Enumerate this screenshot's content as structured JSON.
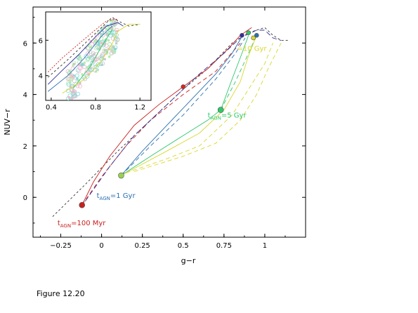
{
  "caption": "Figure 12.20",
  "chart_data": {
    "type": "line",
    "xlabel": "g−r",
    "ylabel": "NUV−r",
    "xlim": [
      -0.42,
      1.25
    ],
    "ylim": [
      -1.55,
      7.4
    ],
    "xticks": [
      -0.25,
      0,
      0.25,
      0.5,
      0.75,
      1
    ],
    "xtick_labels": [
      "−0.25",
      "0",
      "0.25",
      "0.5",
      "0.75",
      "1"
    ],
    "yticks": [
      0,
      2,
      4,
      6
    ],
    "ytick_labels": [
      "0",
      "2",
      "4",
      "6"
    ],
    "colors": {
      "red": "#c8201e",
      "blue": "#2a6fb0",
      "green": "#2ec86a",
      "yellow": "#d8d830",
      "black": "#333333",
      "navy": "#30309a"
    },
    "annotations": [
      {
        "main": "t",
        "sub": "AGN",
        "rest": "=100 Myr",
        "x": -0.27,
        "y": -1.08,
        "color": "#c8201e"
      },
      {
        "main": "t",
        "sub": "AGN",
        "rest": "=1 Gyr",
        "x": -0.03,
        "y": -0.02,
        "color": "#2a6fb0"
      },
      {
        "main": "t",
        "sub": "AGN",
        "rest": "=5 Gyr",
        "x": 0.65,
        "y": 3.1,
        "color": "#2ec86a"
      },
      {
        "main": "",
        "sub": "",
        "rest": "=10 Gyr",
        "x": 0.83,
        "y": 5.7,
        "color": "#d8d830"
      }
    ],
    "series": [
      {
        "color": "#333333",
        "dash": "3,3",
        "points": [
          [
            -0.3,
            -0.75
          ],
          [
            -0.1,
            0.5
          ],
          [
            0.1,
            1.8
          ],
          [
            0.3,
            3.0
          ],
          [
            0.5,
            4.2
          ],
          [
            0.65,
            5.0
          ],
          [
            0.8,
            6.0
          ],
          [
            0.9,
            6.4
          ],
          [
            1.0,
            6.6
          ],
          [
            1.05,
            6.3
          ],
          [
            1.1,
            6.1
          ],
          [
            1.15,
            6.1
          ]
        ]
      },
      {
        "color": "#c8201e",
        "dash": "",
        "points": [
          [
            -0.12,
            -0.3
          ],
          [
            -0.05,
            0.6
          ],
          [
            0.05,
            1.6
          ],
          [
            0.2,
            2.8
          ],
          [
            0.35,
            3.6
          ],
          [
            0.5,
            4.3
          ],
          [
            0.65,
            5.0
          ],
          [
            0.78,
            5.8
          ],
          [
            0.85,
            6.3
          ],
          [
            0.92,
            6.6
          ]
        ]
      },
      {
        "color": "#c8201e",
        "dash": "6,4",
        "points": [
          [
            -0.12,
            -0.3
          ],
          [
            0.0,
            0.8
          ],
          [
            0.15,
            2.0
          ],
          [
            0.3,
            3.0
          ],
          [
            0.5,
            4.0
          ],
          [
            0.7,
            4.9
          ],
          [
            0.85,
            6.0
          ]
        ]
      },
      {
        "color": "#30309a",
        "dash": "7,4",
        "points": [
          [
            -0.1,
            -0.15
          ],
          [
            0.05,
            1.2
          ],
          [
            0.2,
            2.4
          ],
          [
            0.4,
            3.6
          ],
          [
            0.6,
            4.8
          ],
          [
            0.75,
            5.6
          ],
          [
            0.85,
            6.2
          ],
          [
            0.95,
            6.5
          ],
          [
            1.0,
            6.5
          ],
          [
            1.05,
            6.2
          ],
          [
            1.1,
            6.1
          ]
        ]
      },
      {
        "color": "#2a6fb0",
        "dash": "",
        "points": [
          [
            0.12,
            0.85
          ],
          [
            0.25,
            1.8
          ],
          [
            0.4,
            2.8
          ],
          [
            0.55,
            3.8
          ],
          [
            0.7,
            4.8
          ],
          [
            0.8,
            5.6
          ],
          [
            0.86,
            6.25
          ]
        ]
      },
      {
        "color": "#2a6fb0",
        "dash": "6,4",
        "points": [
          [
            0.12,
            0.85
          ],
          [
            0.3,
            2.0
          ],
          [
            0.5,
            3.2
          ],
          [
            0.7,
            4.6
          ],
          [
            0.82,
            5.6
          ],
          [
            0.88,
            6.2
          ]
        ]
      },
      {
        "color": "#2ec86a",
        "dash": "",
        "points": [
          [
            0.12,
            0.85
          ],
          [
            0.3,
            1.6
          ],
          [
            0.5,
            2.4
          ],
          [
            0.65,
            3.0
          ],
          [
            0.73,
            3.4
          ],
          [
            0.8,
            4.6
          ],
          [
            0.86,
            5.6
          ],
          [
            0.9,
            6.3
          ]
        ]
      },
      {
        "color": "#2ec86a",
        "dash": "6,4",
        "points": [
          [
            0.73,
            3.4
          ],
          [
            0.82,
            4.5
          ],
          [
            0.9,
            5.6
          ],
          [
            0.95,
            6.3
          ]
        ]
      },
      {
        "color": "#d8d830",
        "dash": "",
        "points": [
          [
            0.12,
            0.85
          ],
          [
            0.4,
            1.8
          ],
          [
            0.6,
            2.5
          ],
          [
            0.75,
            3.4
          ],
          [
            0.85,
            4.5
          ],
          [
            0.9,
            5.5
          ],
          [
            0.95,
            6.3
          ]
        ]
      },
      {
        "color": "#d8d830",
        "dash": "6,4",
        "points": [
          [
            0.15,
            0.95
          ],
          [
            0.4,
            1.5
          ],
          [
            0.6,
            2.0
          ],
          [
            0.8,
            3.2
          ],
          [
            0.9,
            4.2
          ],
          [
            1.0,
            5.2
          ],
          [
            1.05,
            6.0
          ]
        ]
      },
      {
        "color": "#d8d830",
        "dash": "6,4",
        "points": [
          [
            0.2,
            1.0
          ],
          [
            0.5,
            1.6
          ],
          [
            0.7,
            2.1
          ],
          [
            0.85,
            3.0
          ],
          [
            0.95,
            4.0
          ],
          [
            1.02,
            5.0
          ],
          [
            1.1,
            6.0
          ]
        ]
      }
    ],
    "markers": [
      {
        "x": -0.12,
        "y": -0.3,
        "color": "#c8201e",
        "r": 4
      },
      {
        "x": 0.12,
        "y": 0.85,
        "color": "#9ad050",
        "r": 4
      },
      {
        "x": 0.73,
        "y": 3.4,
        "color": "#2ec86a",
        "r": 4
      },
      {
        "x": 0.5,
        "y": 4.3,
        "color": "#e02020",
        "r": 3
      },
      {
        "x": 0.86,
        "y": 6.3,
        "color": "#30309a",
        "r": 3
      },
      {
        "x": 0.9,
        "y": 6.4,
        "color": "#2ec86a",
        "r": 3
      },
      {
        "x": 0.95,
        "y": 6.3,
        "color": "#2a6fb0",
        "r": 3
      },
      {
        "x": 0.93,
        "y": 6.2,
        "color": "#d8d830",
        "r": 3
      }
    ],
    "inset": {
      "xlim": [
        0.35,
        1.3
      ],
      "ylim": [
        2.6,
        7.6
      ],
      "xticks": [
        0.4,
        0.8,
        1.2
      ],
      "xtick_labels": [
        "0.4",
        "0.8",
        "1.2"
      ],
      "yticks": [
        4,
        6
      ],
      "ytick_labels": [
        "4",
        "6"
      ],
      "series": [
        {
          "color": "#c8201e",
          "dash": "2,2",
          "points": [
            [
              0.37,
              4.2
            ],
            [
              0.5,
              5.0
            ],
            [
              0.65,
              5.8
            ],
            [
              0.8,
              6.6
            ],
            [
              0.9,
              7.1
            ],
            [
              1.0,
              7.2
            ]
          ]
        },
        {
          "color": "#333333",
          "dash": "3,3",
          "points": [
            [
              0.37,
              3.9
            ],
            [
              0.55,
              4.9
            ],
            [
              0.7,
              5.8
            ],
            [
              0.85,
              6.7
            ],
            [
              0.95,
              7.3
            ],
            [
              1.0,
              7.1
            ],
            [
              1.1,
              6.8
            ],
            [
              1.2,
              6.9
            ]
          ]
        },
        {
          "color": "#30309a",
          "dash": "",
          "points": [
            [
              0.37,
              3.5
            ],
            [
              0.5,
              4.3
            ],
            [
              0.65,
              5.2
            ],
            [
              0.8,
              6.2
            ],
            [
              0.9,
              6.8
            ],
            [
              1.0,
              7.0
            ],
            [
              1.05,
              6.8
            ]
          ]
        },
        {
          "color": "#2a6fb0",
          "dash": "",
          "points": [
            [
              0.37,
              3.1
            ],
            [
              0.55,
              4.0
            ],
            [
              0.7,
              5.0
            ],
            [
              0.85,
              6.2
            ],
            [
              0.95,
              6.8
            ]
          ]
        },
        {
          "color": "#2ec86a",
          "dash": "",
          "points": [
            [
              0.6,
              3.3
            ],
            [
              0.75,
              4.5
            ],
            [
              0.85,
              5.6
            ],
            [
              0.95,
              6.6
            ]
          ]
        },
        {
          "color": "#d8d830",
          "dash": "",
          "points": [
            [
              0.5,
              3.0
            ],
            [
              0.7,
              3.8
            ],
            [
              0.85,
              4.8
            ],
            [
              0.95,
              5.8
            ],
            [
              1.0,
              6.5
            ],
            [
              1.1,
              6.9
            ],
            [
              1.2,
              6.9
            ]
          ]
        }
      ],
      "cloud_colors": [
        "#7fd8d8",
        "#f2b8d0",
        "#c8c8c8",
        "#b8e8b0"
      ]
    }
  }
}
